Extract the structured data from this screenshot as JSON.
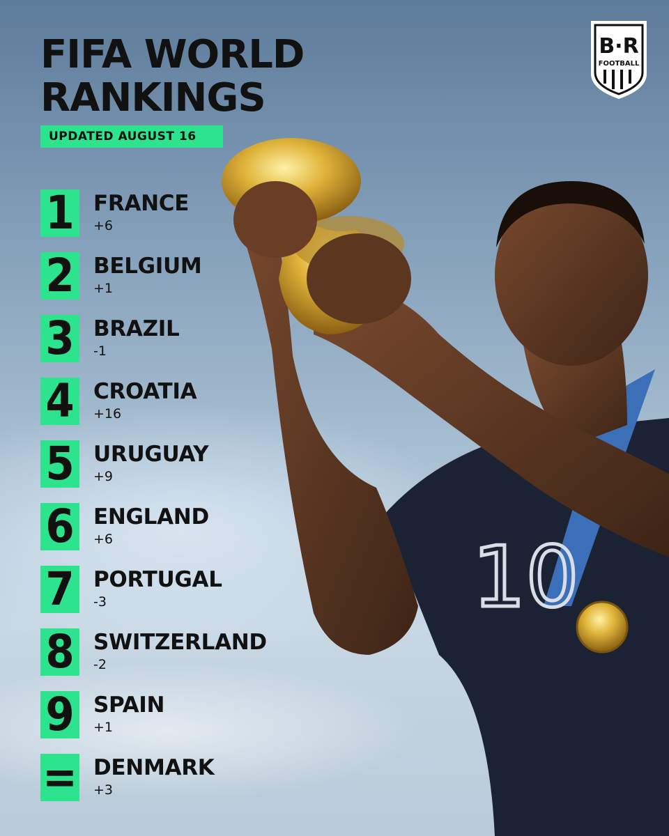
{
  "header": {
    "title_line1": "FIFA WORLD",
    "title_line2": "RANKINGS",
    "updated": "UPDATED AUGUST 16"
  },
  "logo": {
    "top_text": "B·R",
    "bottom_text": "FOOTBALL"
  },
  "rankings": [
    {
      "rank": "1",
      "country": "FRANCE",
      "change": "+6"
    },
    {
      "rank": "2",
      "country": "BELGIUM",
      "change": "+1"
    },
    {
      "rank": "3",
      "country": "BRAZIL",
      "change": "-1"
    },
    {
      "rank": "4",
      "country": "CROATIA",
      "change": "+16"
    },
    {
      "rank": "5",
      "country": "URUGUAY",
      "change": "+9"
    },
    {
      "rank": "6",
      "country": "ENGLAND",
      "change": "+6"
    },
    {
      "rank": "7",
      "country": "PORTUGAL",
      "change": "-3"
    },
    {
      "rank": "8",
      "country": "SWITZERLAND",
      "change": "-2"
    },
    {
      "rank": "9",
      "country": "SPAIN",
      "change": "+1"
    },
    {
      "rank": "=",
      "country": "DENMARK",
      "change": "+3"
    }
  ],
  "colors": {
    "accent": "#2de38d",
    "text": "#111111",
    "jersey": "#1b2233"
  }
}
